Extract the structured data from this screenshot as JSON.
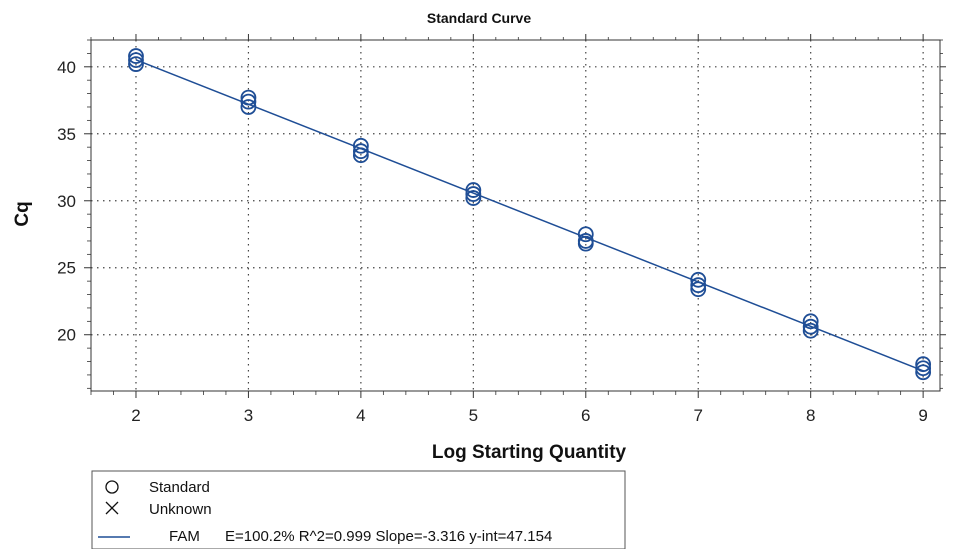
{
  "chart_data": {
    "type": "scatter",
    "title": "Standard Curve",
    "xlabel": "Log Starting Quantity",
    "ylabel": "Cq",
    "xlim": [
      1.6,
      9.15
    ],
    "ylim": [
      15.8,
      42.0
    ],
    "x_ticks": [
      2,
      3,
      4,
      5,
      6,
      7,
      8,
      9
    ],
    "y_ticks": [
      20,
      25,
      30,
      35,
      40
    ],
    "grid": true,
    "series": [
      {
        "name": "Standard",
        "marker": "circle",
        "points": [
          {
            "x": 2,
            "y": 40.8
          },
          {
            "x": 2,
            "y": 40.5
          },
          {
            "x": 2,
            "y": 40.2
          },
          {
            "x": 3,
            "y": 37.7
          },
          {
            "x": 3,
            "y": 37.4
          },
          {
            "x": 3,
            "y": 37.0
          },
          {
            "x": 4,
            "y": 34.1
          },
          {
            "x": 4,
            "y": 33.7
          },
          {
            "x": 4,
            "y": 33.4
          },
          {
            "x": 5,
            "y": 30.8
          },
          {
            "x": 5,
            "y": 30.5
          },
          {
            "x": 5,
            "y": 30.2
          },
          {
            "x": 6,
            "y": 27.5
          },
          {
            "x": 6,
            "y": 27.0
          },
          {
            "x": 6,
            "y": 26.8
          },
          {
            "x": 7,
            "y": 24.1
          },
          {
            "x": 7,
            "y": 23.7
          },
          {
            "x": 7,
            "y": 23.4
          },
          {
            "x": 8,
            "y": 21.0
          },
          {
            "x": 8,
            "y": 20.6
          },
          {
            "x": 8,
            "y": 20.3
          },
          {
            "x": 9,
            "y": 17.8
          },
          {
            "x": 9,
            "y": 17.5
          },
          {
            "x": 9,
            "y": 17.2
          }
        ]
      },
      {
        "name": "Unknown",
        "marker": "x",
        "points": []
      }
    ],
    "fit": {
      "label": "FAM",
      "slope": -3.316,
      "intercept": 47.154,
      "x_range": [
        2,
        9
      ],
      "stats_text": "E=100.2% R^2=0.999 Slope=-3.316 y-int=47.154"
    },
    "legend": {
      "position": "bottom-left",
      "entries": [
        {
          "symbol": "circle",
          "label": "Standard"
        },
        {
          "symbol": "x",
          "label": "Unknown"
        },
        {
          "symbol": "line",
          "label": "FAM",
          "text": "E=100.2% R^2=0.999 Slope=-3.316 y-int=47.154"
        }
      ]
    },
    "colors": {
      "series": "#1f4e96",
      "grid": "#444444",
      "axis": "#333333",
      "legend_border": "#555555"
    }
  }
}
